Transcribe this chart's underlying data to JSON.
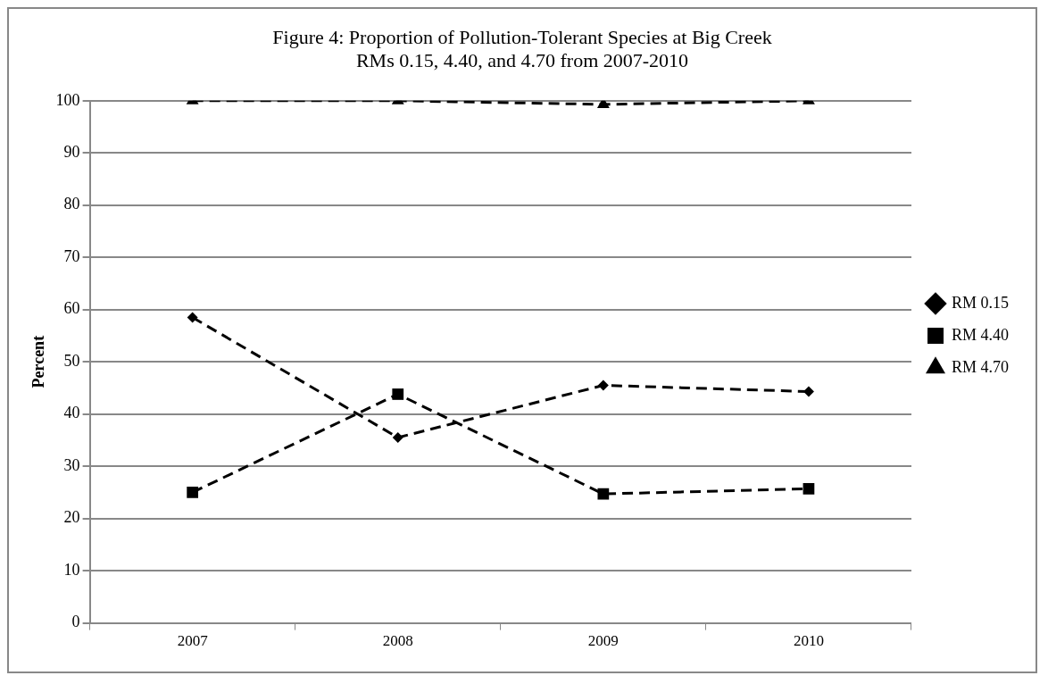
{
  "chart_data": {
    "type": "line",
    "title": "Figure 4: Proportion of Pollution-Tolerant Species at Big Creek\nRMs 0.15, 4.40, and 4.70 from 2007-2010",
    "ylabel": "Percent",
    "categories": [
      "2007",
      "2008",
      "2009",
      "2010"
    ],
    "series": [
      {
        "name": "RM 0.15",
        "color": "#000000",
        "marker": "diamond",
        "line_style": "dashed",
        "values": [
          58.5,
          35.5,
          45.5,
          44.3
        ]
      },
      {
        "name": "RM 4.40",
        "color": "#000000",
        "marker": "square",
        "line_style": "dashed",
        "values": [
          25,
          43.8,
          24.7,
          25.7
        ]
      },
      {
        "name": "RM 4.70",
        "color": "#000000",
        "marker": "triangle",
        "line_style": "dashed",
        "values": [
          100,
          100,
          99.3,
          100
        ]
      }
    ],
    "ylim": [
      0,
      100
    ],
    "yticks": [
      0,
      10,
      20,
      30,
      40,
      50,
      60,
      70,
      80,
      90,
      100
    ],
    "grid": "y",
    "legend": "right"
  }
}
